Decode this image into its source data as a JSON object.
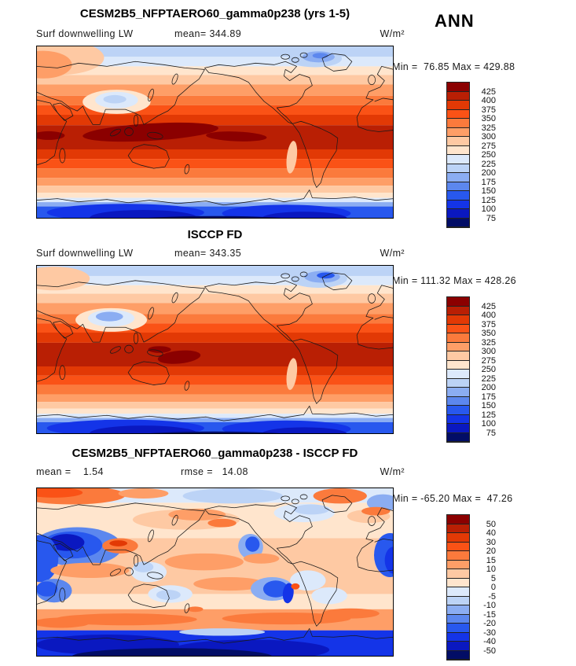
{
  "figure": {
    "season": "ANN",
    "background": "#ffffff",
    "units": "W/m²",
    "variable": "Surf downwelling LW"
  },
  "colormap": [
    "#020d66",
    "#0a18c0",
    "#1434e8",
    "#2858ee",
    "#5c87ee",
    "#8badf2",
    "#bcd3f6",
    "#dce9fb",
    "#ffe5cd",
    "#fec9a3",
    "#fe9e67",
    "#fb7a3c",
    "#fa5216",
    "#e23905",
    "#b91f04",
    "#8b0000"
  ],
  "panels": [
    {
      "title": "CESM2B5_NFPTAERO60_gamma0p238 (yrs 1-5)",
      "labels": {
        "left": "Surf downwelling LW",
        "mid": "mean= 344.89",
        "right": "W/m²"
      },
      "minmax": "Min =  76.85 Max = 429.88",
      "ticks": [
        "425",
        "400",
        "375",
        "350",
        "325",
        "300",
        "275",
        "250",
        "225",
        "200",
        "175",
        "150",
        "125",
        "100",
        "75"
      ],
      "field": {
        "bands": [
          [
            0,
            0.065,
            6
          ],
          [
            0.065,
            0.12,
            7
          ],
          [
            0.12,
            0.17,
            8
          ],
          [
            0.17,
            0.225,
            9
          ],
          [
            0.225,
            0.29,
            10
          ],
          [
            0.29,
            0.345,
            11
          ],
          [
            0.345,
            0.4,
            12
          ],
          [
            0.4,
            0.46,
            13
          ],
          [
            0.46,
            0.6,
            14
          ],
          [
            0.6,
            0.655,
            13
          ],
          [
            0.655,
            0.71,
            12
          ],
          [
            0.71,
            0.765,
            11
          ],
          [
            0.765,
            0.81,
            10
          ],
          [
            0.81,
            0.85,
            9
          ],
          [
            0.85,
            0.88,
            8
          ],
          [
            0.88,
            0.905,
            7
          ],
          [
            0.905,
            0.93,
            5
          ],
          [
            0.93,
            1,
            3
          ]
        ],
        "blobs": [
          [
            0.06,
            0.07,
            0.13,
            0.1,
            9,
            0
          ],
          [
            0.02,
            0.11,
            0.08,
            0.08,
            10,
            0
          ],
          [
            0.32,
            0.5,
            0.19,
            0.05,
            15,
            -3
          ],
          [
            0.56,
            0.525,
            0.085,
            0.028,
            15,
            2
          ],
          [
            0.035,
            0.52,
            0.045,
            0.025,
            15,
            0
          ],
          [
            0.225,
            0.325,
            0.095,
            0.07,
            8,
            0
          ],
          [
            0.225,
            0.315,
            0.06,
            0.048,
            7,
            0
          ],
          [
            0.22,
            0.31,
            0.032,
            0.024,
            6,
            0
          ],
          [
            0.78,
            0.075,
            0.075,
            0.05,
            6,
            0
          ],
          [
            0.79,
            0.065,
            0.045,
            0.032,
            5,
            0
          ],
          [
            0.795,
            0.058,
            0.022,
            0.016,
            4,
            0
          ],
          [
            0.715,
            0.645,
            0.014,
            0.095,
            9,
            8
          ],
          [
            0.25,
            0.965,
            0.22,
            0.05,
            2,
            0
          ],
          [
            0.7,
            0.97,
            0.18,
            0.05,
            2,
            0
          ],
          [
            0.3,
            0.995,
            0.15,
            0.045,
            1,
            0
          ],
          [
            0.75,
            1,
            0.12,
            0.04,
            1,
            0
          ],
          [
            0.5,
            1.035,
            0.3,
            0.05,
            0,
            0
          ]
        ]
      }
    },
    {
      "title": "ISCCP FD",
      "labels": {
        "left": "Surf downwelling LW",
        "mid": "mean= 343.35",
        "right": "W/m²"
      },
      "minmax": "Min = 111.32 Max = 428.26",
      "ticks": [
        "425",
        "400",
        "375",
        "350",
        "325",
        "300",
        "275",
        "250",
        "225",
        "200",
        "175",
        "150",
        "125",
        "100",
        "75"
      ],
      "field": {
        "bands": [
          [
            0,
            0.065,
            6
          ],
          [
            0.065,
            0.12,
            7
          ],
          [
            0.12,
            0.17,
            8
          ],
          [
            0.17,
            0.225,
            9
          ],
          [
            0.225,
            0.29,
            10
          ],
          [
            0.29,
            0.345,
            11
          ],
          [
            0.345,
            0.4,
            12
          ],
          [
            0.4,
            0.46,
            13
          ],
          [
            0.46,
            0.6,
            14
          ],
          [
            0.6,
            0.655,
            13
          ],
          [
            0.655,
            0.71,
            12
          ],
          [
            0.71,
            0.765,
            11
          ],
          [
            0.765,
            0.81,
            10
          ],
          [
            0.81,
            0.85,
            9
          ],
          [
            0.85,
            0.88,
            8
          ],
          [
            0.88,
            0.905,
            7
          ],
          [
            0.905,
            0.93,
            5
          ],
          [
            0.93,
            1,
            3
          ]
        ],
        "blobs": [
          [
            0.05,
            0.08,
            0.1,
            0.07,
            9,
            0
          ],
          [
            0.4,
            0.545,
            0.06,
            0.038,
            15,
            -5
          ],
          [
            0.345,
            0.5,
            0.032,
            0.02,
            15,
            0
          ],
          [
            0.21,
            0.325,
            0.1,
            0.07,
            8,
            0
          ],
          [
            0.21,
            0.315,
            0.065,
            0.05,
            7,
            0
          ],
          [
            0.205,
            0.305,
            0.038,
            0.028,
            5,
            0
          ],
          [
            0.79,
            0.08,
            0.08,
            0.055,
            6,
            0
          ],
          [
            0.8,
            0.07,
            0.05,
            0.035,
            5,
            0
          ],
          [
            0.81,
            0.062,
            0.025,
            0.018,
            3,
            0
          ],
          [
            0.715,
            0.645,
            0.014,
            0.095,
            9,
            8
          ],
          [
            0.25,
            0.965,
            0.22,
            0.05,
            2,
            0
          ],
          [
            0.7,
            0.97,
            0.18,
            0.05,
            2,
            0
          ],
          [
            0.3,
            0.995,
            0.15,
            0.045,
            1,
            0
          ],
          [
            0.75,
            1,
            0.12,
            0.04,
            1,
            0
          ],
          [
            0.5,
            1.035,
            0.3,
            0.05,
            0,
            0
          ]
        ]
      }
    },
    {
      "title": "CESM2B5_NFPTAERO60_gamma0p238 - ISCCP FD",
      "labels": {
        "left": "mean =    1.54",
        "mid": "rmse =   14.08",
        "right": "W/m²"
      },
      "minmax": "Min = -65.20 Max =  47.26",
      "ticks": [
        "50",
        "40",
        "30",
        "20",
        "15",
        "10",
        "5",
        "0",
        "-5",
        "-10",
        "-15",
        "-20",
        "-30",
        "-40",
        "-50"
      ],
      "field": {
        "bands": [
          [
            0,
            0.09,
            7
          ],
          [
            0.09,
            0.3,
            8
          ],
          [
            0.3,
            0.63,
            9
          ],
          [
            0.63,
            0.72,
            8
          ],
          [
            0.72,
            0.845,
            10
          ],
          [
            0.845,
            1,
            2
          ]
        ],
        "blobs": [
          [
            0.1,
            0.045,
            0.15,
            0.055,
            11,
            0
          ],
          [
            0.05,
            0.03,
            0.08,
            0.03,
            12,
            0
          ],
          [
            0.3,
            0.035,
            0.07,
            0.03,
            10,
            0
          ],
          [
            0.55,
            0.05,
            0.14,
            0.045,
            6,
            0
          ],
          [
            0.85,
            0.05,
            0.075,
            0.045,
            11,
            0
          ],
          [
            0.97,
            0.09,
            0.045,
            0.05,
            5,
            0
          ],
          [
            0.75,
            0.15,
            0.085,
            0.055,
            7,
            0
          ],
          [
            0.77,
            0.13,
            0.05,
            0.03,
            6,
            0
          ],
          [
            0.42,
            0.19,
            0.15,
            0.06,
            9,
            0
          ],
          [
            0.45,
            0.16,
            0.08,
            0.035,
            10,
            0
          ],
          [
            0.52,
            0.21,
            0.04,
            0.025,
            11,
            0
          ],
          [
            0.93,
            0.17,
            0.06,
            0.04,
            9,
            0
          ],
          [
            0.95,
            0.14,
            0.04,
            0.025,
            11,
            0
          ],
          [
            0.115,
            0.35,
            0.125,
            0.115,
            4,
            0
          ],
          [
            0.1,
            0.34,
            0.085,
            0.08,
            3,
            0
          ],
          [
            0.085,
            0.325,
            0.05,
            0.05,
            1,
            0
          ],
          [
            0.235,
            0.345,
            0.05,
            0.045,
            11,
            0
          ],
          [
            0.23,
            0.33,
            0.025,
            0.018,
            13,
            0
          ],
          [
            0.012,
            0.42,
            0.05,
            0.14,
            3,
            0
          ],
          [
            0.99,
            0.4,
            0.045,
            0.13,
            3,
            0
          ],
          [
            1,
            0.43,
            0.025,
            0.08,
            2,
            0
          ],
          [
            0.6,
            0.35,
            0.035,
            0.075,
            5,
            15
          ],
          [
            0.605,
            0.335,
            0.02,
            0.045,
            3,
            15
          ],
          [
            0.63,
            0.42,
            0.05,
            0.03,
            10,
            0
          ],
          [
            0.15,
            0.49,
            0.11,
            0.045,
            10,
            0
          ],
          [
            0.47,
            0.44,
            0.11,
            0.05,
            10,
            0
          ],
          [
            0.54,
            0.57,
            0.1,
            0.04,
            10,
            0
          ],
          [
            0.315,
            0.5,
            0.05,
            0.06,
            7,
            0
          ],
          [
            0.3,
            0.47,
            0.028,
            0.032,
            6,
            0
          ],
          [
            0.375,
            0.63,
            0.062,
            0.052,
            7,
            0
          ],
          [
            0.37,
            0.635,
            0.034,
            0.03,
            6,
            0
          ],
          [
            0.76,
            0.55,
            0.05,
            0.06,
            7,
            0
          ],
          [
            0.82,
            0.64,
            0.05,
            0.05,
            7,
            0
          ],
          [
            0.66,
            0.6,
            0.06,
            0.07,
            5,
            0
          ],
          [
            0.67,
            0.6,
            0.035,
            0.05,
            3,
            0
          ],
          [
            0.705,
            0.625,
            0.015,
            0.06,
            2,
            8
          ],
          [
            0.725,
            0.585,
            0.012,
            0.018,
            12,
            0
          ],
          [
            0.05,
            0.61,
            0.05,
            0.07,
            4,
            0
          ],
          [
            0.03,
            0.6,
            0.03,
            0.045,
            3,
            0
          ],
          [
            0.445,
            0.72,
            0.022,
            0.016,
            11,
            0
          ],
          [
            0.25,
            0.78,
            0.2,
            0.035,
            11,
            0
          ],
          [
            0.7,
            0.775,
            0.18,
            0.035,
            11,
            0
          ],
          [
            0.88,
            0.745,
            0.08,
            0.03,
            11,
            0
          ],
          [
            0.07,
            0.8,
            0.08,
            0.03,
            11,
            0
          ],
          [
            0.52,
            0.855,
            0.12,
            0.022,
            6,
            0
          ],
          [
            0.2,
            0.93,
            0.2,
            0.06,
            1,
            0
          ],
          [
            0.6,
            0.96,
            0.22,
            0.06,
            1,
            0
          ],
          [
            0.38,
            1,
            0.28,
            0.05,
            0,
            0
          ]
        ]
      }
    }
  ],
  "chart_data": {
    "type": "heatmap",
    "subtype": "filled-contour global maps (lat-lon), 3 stacked panels with shared style",
    "season": "ANN",
    "variable": "Surf downwelling LW",
    "units": "W/m²",
    "legend_position": "right",
    "panels": [
      {
        "name": "CESM2B5_NFPTAERO60_gamma0p238 (yrs 1-5)",
        "mean": 344.89,
        "min": 76.85,
        "max": 429.88,
        "levels": [
          75,
          100,
          125,
          150,
          175,
          200,
          225,
          250,
          275,
          300,
          325,
          350,
          375,
          400,
          425
        ]
      },
      {
        "name": "ISCCP FD",
        "mean": 343.35,
        "min": 111.32,
        "max": 428.26,
        "levels": [
          75,
          100,
          125,
          150,
          175,
          200,
          225,
          250,
          275,
          300,
          325,
          350,
          375,
          400,
          425
        ]
      },
      {
        "name": "CESM2B5_NFPTAERO60_gamma0p238 - ISCCP FD",
        "mean": 1.54,
        "rmse": 14.08,
        "min": -65.2,
        "max": 47.26,
        "levels": [
          -50,
          -40,
          -30,
          -20,
          -15,
          -10,
          -5,
          0,
          5,
          10,
          15,
          20,
          30,
          40,
          50
        ]
      }
    ],
    "colormap_low_to_high": [
      "#020d66",
      "#0a18c0",
      "#1434e8",
      "#2858ee",
      "#5c87ee",
      "#8badf2",
      "#bcd3f6",
      "#dce9fb",
      "#ffe5cd",
      "#fec9a3",
      "#fe9e67",
      "#fb7a3c",
      "#fa5216",
      "#e23905",
      "#b91f04",
      "#8b0000"
    ],
    "field_structure_note": "Panels 1-2: zonal bands from ~200 W/m2 (Arctic) peaking >425 W/m2 (tropical warm pool), dropping to <75-100 W/m2 over Antarctica; cold anomalies over Tibet and Greenland. Panel 3: mostly +5..+15 with strong negative centers over Middle East/Central Asia, subtropical stratocumulus coasts and Antarctica, positive band over the Southern Ocean."
  }
}
